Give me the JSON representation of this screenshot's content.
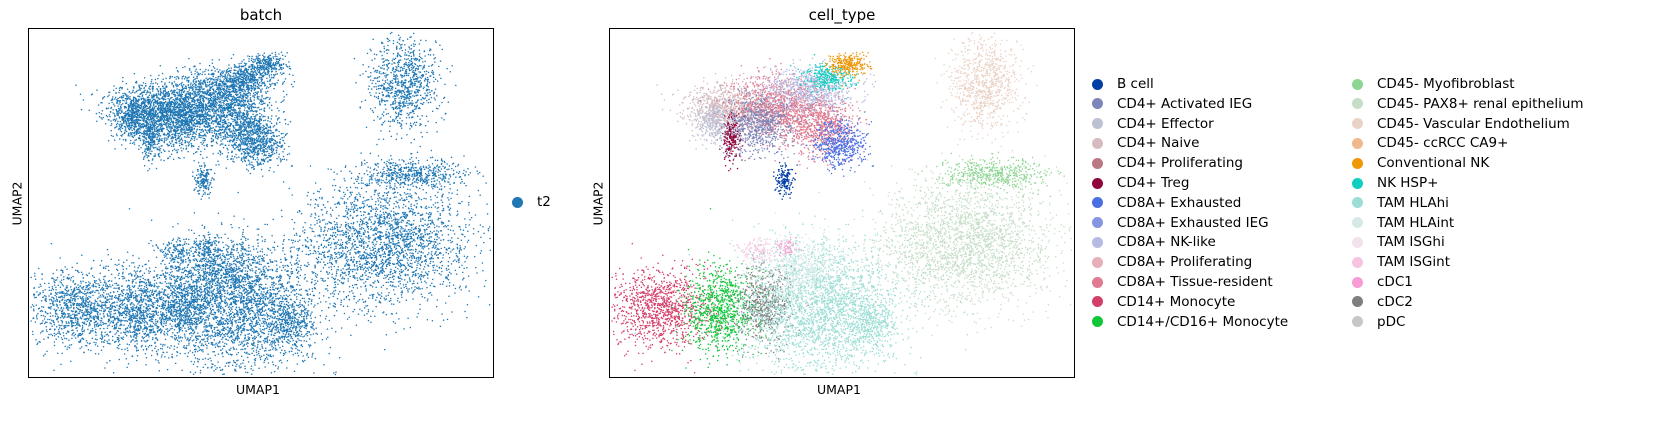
{
  "chart_data": [
    {
      "type": "scatter",
      "title": "batch",
      "xlabel": "UMAP1",
      "ylabel": "UMAP2",
      "legend_placement": "right",
      "legend": [
        {
          "label": "t2",
          "color": "#1f77b4"
        }
      ]
    },
    {
      "type": "scatter",
      "title": "cell_type",
      "xlabel": "UMAP1",
      "ylabel": "UMAP2",
      "legend_placement": "right",
      "legend": [
        {
          "label": "B cell",
          "color": "#023fa5"
        },
        {
          "label": "CD4+ Activated IEG",
          "color": "#7d87b9"
        },
        {
          "label": "CD4+ Effector",
          "color": "#bec1d4"
        },
        {
          "label": "CD4+ Naive",
          "color": "#d6bcc0"
        },
        {
          "label": "CD4+ Proliferating",
          "color": "#bb7784"
        },
        {
          "label": "CD4+ Treg",
          "color": "#8e063b"
        },
        {
          "label": "CD8A+ Exhausted",
          "color": "#4a6fe3"
        },
        {
          "label": "CD8A+ Exhausted IEG",
          "color": "#8595e1"
        },
        {
          "label": "CD8A+ NK-like",
          "color": "#b5bbe3"
        },
        {
          "label": "CD8A+ Proliferating",
          "color": "#e6afb9"
        },
        {
          "label": "CD8A+ Tissue-resident",
          "color": "#e07b91"
        },
        {
          "label": "CD14+ Monocyte",
          "color": "#d33f6a"
        },
        {
          "label": "CD14+/CD16+ Monocyte",
          "color": "#11c638"
        },
        {
          "label": "CD45- Myofibroblast",
          "color": "#8dd593"
        },
        {
          "label": "CD45- PAX8+ renal epithelium",
          "color": "#c6dec7"
        },
        {
          "label": "CD45- Vascular Endothelium",
          "color": "#ead3c6"
        },
        {
          "label": "CD45- ccRCC CA9+",
          "color": "#f0b98d"
        },
        {
          "label": "Conventional NK",
          "color": "#ef9708"
        },
        {
          "label": "NK HSP+",
          "color": "#0fcfc0"
        },
        {
          "label": "TAM HLAhi",
          "color": "#9cded6"
        },
        {
          "label": "TAM HLAint",
          "color": "#d5eae7"
        },
        {
          "label": "TAM ISGhi",
          "color": "#f3e1eb"
        },
        {
          "label": "TAM ISGint",
          "color": "#f6c4e1"
        },
        {
          "label": "cDC1",
          "color": "#f79cd4"
        },
        {
          "label": "cDC2",
          "color": "#7f7f7f"
        },
        {
          "label": "pDC",
          "color": "#c7c7c7"
        }
      ]
    }
  ]
}
